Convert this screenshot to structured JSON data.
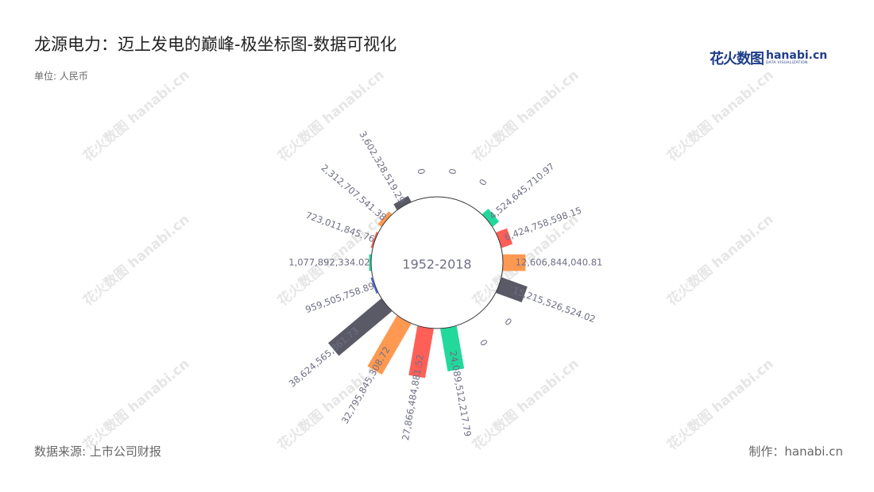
{
  "title": "龙源电力：迈上发电的巅峰-极坐标图-数据可视化",
  "unit": "单位: 人民币",
  "source": "数据来源: 上市公司财报",
  "maker": "制作：hanabi.cn",
  "brand": {
    "cn": "花火数图",
    "en": "hanabi.cn",
    "sub": "DATA VISUALIZATION"
  },
  "watermark": "花火数图 hanabi.cn",
  "chart_data": {
    "type": "bar",
    "polar": true,
    "center_label": "1952-2018",
    "categories": [
      "",
      "",
      "",
      "",
      "",
      "",
      "",
      "",
      "",
      "",
      "",
      "",
      "",
      "",
      "",
      "",
      "",
      ""
    ],
    "values": [
      0,
      0,
      4524645710.97,
      6424758598.15,
      12606844040.81,
      15215526524.02,
      0,
      0,
      24089512217.79,
      27866484881.52,
      32795845308.72,
      38624565861.73,
      959505758.89,
      1077892334.02,
      723011845.76,
      2312707541.38,
      3602328519.29,
      0
    ],
    "labels": [
      "0",
      "0",
      "4,524,645,710.97",
      "6,424,758,598.15",
      "12,606,844,040.81",
      "15,215,526,524.02",
      "0",
      "0",
      "24,089,512,217.79",
      "27,866,484,881.52",
      "32,795,845,308.72",
      "38,624,565,861.73",
      "959,505,758.89",
      "1,077,892,334.02",
      "723,011,845.76",
      "2,312,707,541.38",
      "3,602,328,519.29",
      "0"
    ],
    "colors": [
      "#5a5a66",
      "#5a5a66",
      "#22d99b",
      "#ff5f57",
      "#ff9952",
      "#5a5a66",
      "#5a5a66",
      "#5a5a66",
      "#22d99b",
      "#ff5f57",
      "#ff9952",
      "#5a5a66",
      "#4a6fe0",
      "#22d99b",
      "#ff5f57",
      "#ff9952",
      "#5a5a66",
      "#5a5a66"
    ]
  }
}
